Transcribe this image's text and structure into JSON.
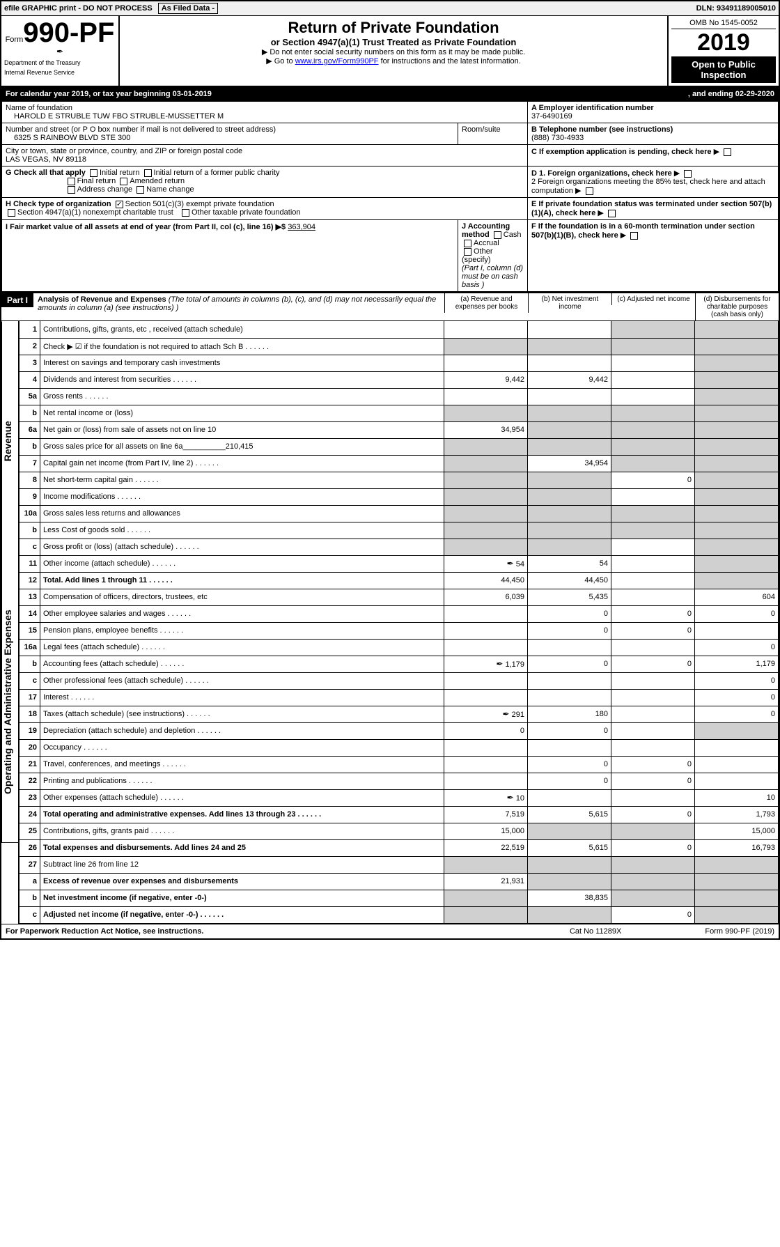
{
  "top": {
    "efile": "efile GRAPHIC print - DO NOT PROCESS",
    "asfiled": "As Filed Data -",
    "dln": "DLN: 93491189005010"
  },
  "header": {
    "form_prefix": "Form",
    "form_number": "990-PF",
    "dept1": "Department of the Treasury",
    "dept2": "Internal Revenue Service",
    "title": "Return of Private Foundation",
    "subtitle": "or Section 4947(a)(1) Trust Treated as Private Foundation",
    "note1": "▶ Do not enter social security numbers on this form as it may be made public.",
    "note2_pre": "▶ Go to ",
    "note2_link": "www.irs.gov/Form990PF",
    "note2_post": " for instructions and the latest information.",
    "omb": "OMB No 1545-0052",
    "year": "2019",
    "open": "Open to Public Inspection"
  },
  "cal": {
    "left": "For calendar year 2019, or tax year beginning 03-01-2019",
    "right": ", and ending 02-29-2020"
  },
  "info": {
    "name_lbl": "Name of foundation",
    "name": "HAROLD E STRUBLE TUW FBO STRUBLE-MUSSETTER M",
    "ein_lbl": "A Employer identification number",
    "ein": "37-6490169",
    "addr_lbl": "Number and street (or P O  box number if mail is not delivered to street address)",
    "addr": "6325 S RAINBOW BLVD STE 300",
    "room_lbl": "Room/suite",
    "phone_lbl": "B Telephone number (see instructions)",
    "phone": "(888) 730-4933",
    "city_lbl": "City or town, state or province, country, and ZIP or foreign postal code",
    "city": "LAS VEGAS, NV  89118",
    "c_lbl": "C If exemption application is pending, check here",
    "g_lbl": "G Check all that apply",
    "g_opts": [
      "Initial return",
      "Initial return of a former public charity",
      "Final return",
      "Amended return",
      "Address change",
      "Name change"
    ],
    "d1": "D 1. Foreign organizations, check here",
    "d2": "2 Foreign organizations meeting the 85% test, check here and attach computation",
    "e_lbl": "E  If private foundation status was terminated under section 507(b)(1)(A), check here",
    "h_lbl": "H Check type of organization",
    "h_opt1": "Section 501(c)(3) exempt private foundation",
    "h_opt2": "Section 4947(a)(1) nonexempt charitable trust",
    "h_opt3": "Other taxable private foundation",
    "i_lbl": "I Fair market value of all assets at end of year (from Part II, col  (c), line 16) ▶$",
    "i_val": "363,904",
    "j_lbl": "J Accounting method",
    "j_opts": [
      "Cash",
      "Accrual",
      "Other (specify)"
    ],
    "j_note": "(Part I, column (d) must be on cash basis )",
    "f_lbl": "F  If the foundation is in a 60-month termination under section 507(b)(1)(B), check here"
  },
  "part1": {
    "label": "Part I",
    "title": "Analysis of Revenue and Expenses",
    "note": "(The total of amounts in columns (b), (c), and (d) may not necessarily equal the amounts in column (a) (see instructions) )",
    "col_a": "(a) Revenue and expenses per books",
    "col_b": "(b) Net investment income",
    "col_c": "(c) Adjusted net income",
    "col_d": "(d) Disbursements for charitable purposes (cash basis only)"
  },
  "sections": {
    "revenue": "Revenue",
    "expenses": "Operating and Administrative Expenses"
  },
  "rows": [
    {
      "n": "1",
      "d": "Contributions, gifts, grants, etc , received (attach schedule)",
      "a": "",
      "b": "",
      "c": "",
      "e": "",
      "shade_cd": true
    },
    {
      "n": "2",
      "d": "Check ▶ ☑ if the foundation is not required to attach Sch B",
      "dots": true,
      "a": "",
      "b": "",
      "c": "",
      "e": "",
      "shade_all": true
    },
    {
      "n": "3",
      "d": "Interest on savings and temporary cash investments",
      "a": "",
      "b": "",
      "c": "",
      "e": "",
      "shade_d": true
    },
    {
      "n": "4",
      "d": "Dividends and interest from securities",
      "dots": true,
      "a": "9,442",
      "b": "9,442",
      "c": "",
      "e": "",
      "shade_d": true
    },
    {
      "n": "5a",
      "d": "Gross rents",
      "dots": true,
      "a": "",
      "b": "",
      "c": "",
      "e": "",
      "shade_d": true
    },
    {
      "n": "b",
      "d": "Net rental income or (loss)",
      "a": "",
      "b": "",
      "c": "",
      "e": "",
      "shade_all": true
    },
    {
      "n": "6a",
      "d": "Net gain or (loss) from sale of assets not on line 10",
      "a": "34,954",
      "b": "",
      "c": "",
      "e": "",
      "shade_bcd": true
    },
    {
      "n": "b",
      "d": "Gross sales price for all assets on line 6a__________210,415",
      "a": "",
      "b": "",
      "c": "",
      "e": "",
      "shade_all": true
    },
    {
      "n": "7",
      "d": "Capital gain net income (from Part IV, line 2)",
      "dots": true,
      "a": "",
      "b": "34,954",
      "c": "",
      "e": "",
      "shade_acd": true
    },
    {
      "n": "8",
      "d": "Net short-term capital gain",
      "dots": true,
      "a": "",
      "b": "",
      "c": "0",
      "e": "",
      "shade_abd": true
    },
    {
      "n": "9",
      "d": "Income modifications",
      "dots": true,
      "a": "",
      "b": "",
      "c": "",
      "e": "",
      "shade_abd": true
    },
    {
      "n": "10a",
      "d": "Gross sales less returns and allowances",
      "a": "",
      "b": "",
      "c": "",
      "e": "",
      "shade_all": true
    },
    {
      "n": "b",
      "d": "Less  Cost of goods sold",
      "dots": true,
      "a": "",
      "b": "",
      "c": "",
      "e": "",
      "shade_all": true
    },
    {
      "n": "c",
      "d": "Gross profit or (loss) (attach schedule)",
      "dots": true,
      "a": "",
      "b": "",
      "c": "",
      "e": "",
      "shade_abd": true
    },
    {
      "n": "11",
      "d": "Other income (attach schedule)",
      "dots": true,
      "icon": true,
      "a": "54",
      "b": "54",
      "c": "",
      "e": "",
      "shade_d": true
    },
    {
      "n": "12",
      "d": "Total. Add lines 1 through 11",
      "bold": true,
      "dots": true,
      "a": "44,450",
      "b": "44,450",
      "c": "",
      "e": "",
      "shade_d": true
    },
    {
      "n": "13",
      "d": "Compensation of officers, directors, trustees, etc",
      "a": "6,039",
      "b": "5,435",
      "c": "",
      "e": "604"
    },
    {
      "n": "14",
      "d": "Other employee salaries and wages",
      "dots": true,
      "a": "",
      "b": "0",
      "c": "0",
      "e": "0"
    },
    {
      "n": "15",
      "d": "Pension plans, employee benefits",
      "dots": true,
      "a": "",
      "b": "0",
      "c": "0",
      "e": ""
    },
    {
      "n": "16a",
      "d": "Legal fees (attach schedule)",
      "dots": true,
      "a": "",
      "b": "",
      "c": "",
      "e": "0"
    },
    {
      "n": "b",
      "d": "Accounting fees (attach schedule)",
      "dots": true,
      "icon": true,
      "a": "1,179",
      "b": "0",
      "c": "0",
      "e": "1,179"
    },
    {
      "n": "c",
      "d": "Other professional fees (attach schedule)",
      "dots": true,
      "a": "",
      "b": "",
      "c": "",
      "e": "0"
    },
    {
      "n": "17",
      "d": "Interest",
      "dots": true,
      "a": "",
      "b": "",
      "c": "",
      "e": "0"
    },
    {
      "n": "18",
      "d": "Taxes (attach schedule) (see instructions)",
      "dots": true,
      "icon": true,
      "a": "291",
      "b": "180",
      "c": "",
      "e": "0"
    },
    {
      "n": "19",
      "d": "Depreciation (attach schedule) and depletion",
      "dots": true,
      "a": "0",
      "b": "0",
      "c": "",
      "e": "",
      "shade_d": true
    },
    {
      "n": "20",
      "d": "Occupancy",
      "dots": true,
      "a": "",
      "b": "",
      "c": "",
      "e": ""
    },
    {
      "n": "21",
      "d": "Travel, conferences, and meetings",
      "dots": true,
      "a": "",
      "b": "0",
      "c": "0",
      "e": ""
    },
    {
      "n": "22",
      "d": "Printing and publications",
      "dots": true,
      "a": "",
      "b": "0",
      "c": "0",
      "e": ""
    },
    {
      "n": "23",
      "d": "Other expenses (attach schedule)",
      "dots": true,
      "icon": true,
      "a": "10",
      "b": "",
      "c": "",
      "e": "10"
    },
    {
      "n": "24",
      "d": "Total operating and administrative expenses. Add lines 13 through 23",
      "bold": true,
      "dots": true,
      "a": "7,519",
      "b": "5,615",
      "c": "0",
      "e": "1,793"
    },
    {
      "n": "25",
      "d": "Contributions, gifts, grants paid",
      "dots": true,
      "a": "15,000",
      "b": "",
      "c": "",
      "e": "15,000",
      "shade_bc": true
    },
    {
      "n": "26",
      "d": "Total expenses and disbursements. Add lines 24 and 25",
      "bold": true,
      "a": "22,519",
      "b": "5,615",
      "c": "0",
      "e": "16,793"
    },
    {
      "n": "27",
      "d": "Subtract line 26 from line 12",
      "a": "",
      "b": "",
      "c": "",
      "e": "",
      "shade_all": true
    },
    {
      "n": "a",
      "d": "Excess of revenue over expenses and disbursements",
      "bold": true,
      "a": "21,931",
      "b": "",
      "c": "",
      "e": "",
      "shade_bcd": true
    },
    {
      "n": "b",
      "d": "Net investment income (if negative, enter -0-)",
      "bold": true,
      "a": "",
      "b": "38,835",
      "c": "",
      "e": "",
      "shade_acd": true
    },
    {
      "n": "c",
      "d": "Adjusted net income (if negative, enter -0-)",
      "bold": true,
      "dots": true,
      "a": "",
      "b": "",
      "c": "0",
      "e": "",
      "shade_abd": true
    }
  ],
  "footer": {
    "left": "For Paperwork Reduction Act Notice, see instructions.",
    "mid": "Cat No 11289X",
    "right": "Form 990-PF (2019)"
  }
}
